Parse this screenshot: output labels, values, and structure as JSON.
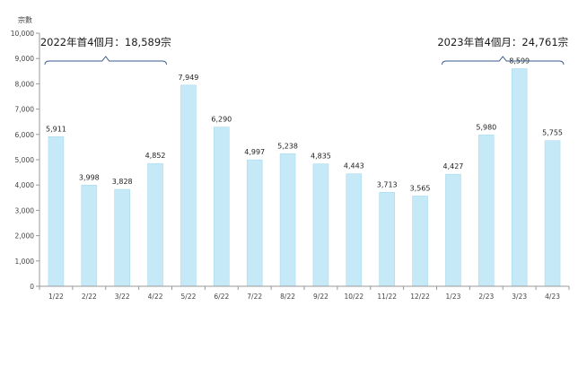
{
  "chart_data": {
    "type": "bar",
    "ylabel": "宗數",
    "ylim": [
      0,
      10000
    ],
    "yticks": [
      "0",
      "1,000",
      "2,000",
      "3,000",
      "4,000",
      "5,000",
      "6,000",
      "7,000",
      "8,000",
      "9,000",
      "10,000"
    ],
    "categories": [
      "1/22",
      "2/22",
      "3/22",
      "4/22",
      "5/22",
      "6/22",
      "7/22",
      "8/22",
      "9/22",
      "10/22",
      "11/22",
      "12/22",
      "1/23",
      "2/23",
      "3/23",
      "4/23"
    ],
    "values": [
      5911,
      3998,
      3828,
      4852,
      7949,
      6290,
      4997,
      5238,
      4835,
      4443,
      3713,
      3565,
      4427,
      5980,
      8599,
      5755
    ],
    "value_labels": [
      "5,911",
      "3,998",
      "3,828",
      "4,852",
      "7,949",
      "6,290",
      "4,997",
      "5,238",
      "4,835",
      "4,443",
      "3,713",
      "3,565",
      "4,427",
      "5,980",
      "8,599",
      "5,755"
    ],
    "bar_color": "#c5e9f7",
    "bar_edge_color": "#9fd6ee",
    "annotations": [
      {
        "text": "2022年首4個月：18,589宗",
        "from_category": 0,
        "to_category": 3
      },
      {
        "text": "2023年首4個月：24,761宗",
        "from_category": 12,
        "to_category": 15
      }
    ]
  }
}
